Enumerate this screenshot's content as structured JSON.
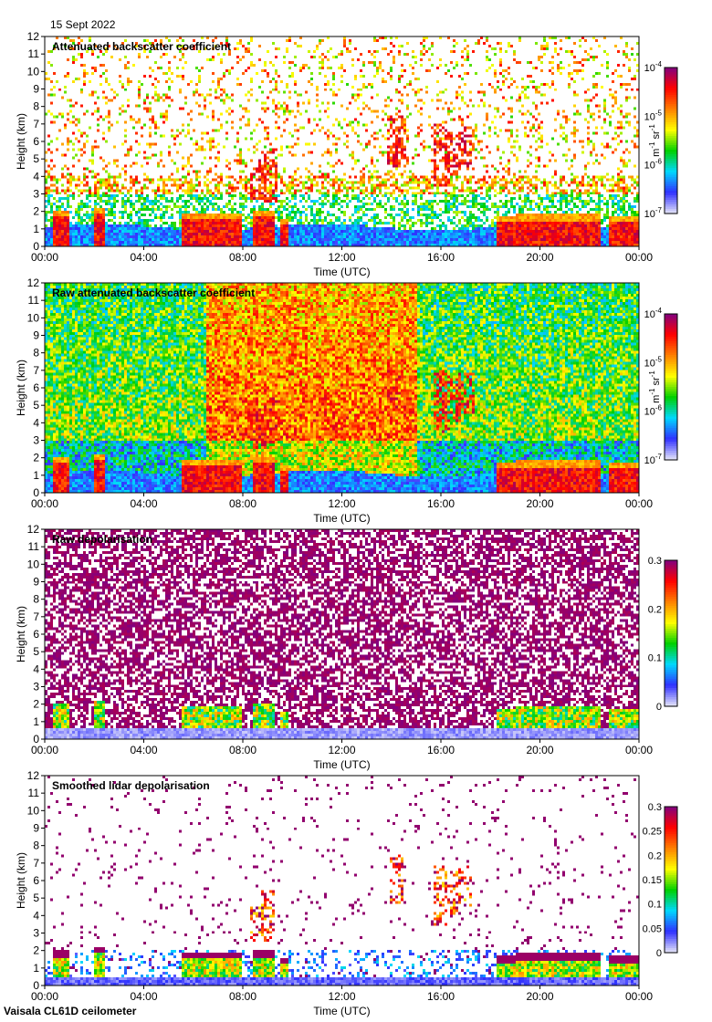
{
  "date": "15 Sept 2022",
  "footer": "Vaisala CL61D ceilometer",
  "colors": {
    "colormap": [
      "#e6e6f8",
      "#3030ff",
      "#00d8ff",
      "#00d000",
      "#ffff00",
      "#ff8000",
      "#ff0000",
      "#800080"
    ]
  },
  "chart_data": [
    {
      "type": "heatmap",
      "title": "Attenuated backscatter coefficient",
      "xlabel": "Time (UTC)",
      "ylabel": "Height (km)",
      "xticks": [
        "00:00",
        "04:00",
        "08:00",
        "12:00",
        "16:00",
        "20:00",
        "00:00"
      ],
      "yticks": [
        "0",
        "1",
        "2",
        "3",
        "4",
        "5",
        "6",
        "7",
        "8",
        "9",
        "10",
        "11",
        "12"
      ],
      "xlim": [
        0,
        24
      ],
      "ylim": [
        0,
        12
      ],
      "colorbar": {
        "scale": "log",
        "range": [
          1e-07,
          0.0001
        ],
        "ticks": [
          {
            "base": "10",
            "exp": "-4"
          },
          {
            "base": "10",
            "exp": "-5"
          },
          {
            "base": "10",
            "exp": "-6"
          },
          {
            "base": "10",
            "exp": "-7"
          }
        ],
        "label": {
          "m": "m",
          "m_exp": "-1",
          "sr": " sr",
          "sr_exp": "-1"
        }
      }
    },
    {
      "type": "heatmap",
      "title": "Raw attenuated backscatter coefficient",
      "xlabel": "Time (UTC)",
      "ylabel": "Height (km)",
      "xticks": [
        "00:00",
        "04:00",
        "08:00",
        "12:00",
        "16:00",
        "20:00",
        "00:00"
      ],
      "yticks": [
        "0",
        "1",
        "2",
        "3",
        "4",
        "5",
        "6",
        "7",
        "8",
        "9",
        "10",
        "11",
        "12"
      ],
      "xlim": [
        0,
        24
      ],
      "ylim": [
        0,
        12
      ],
      "colorbar": {
        "scale": "log",
        "range": [
          1e-07,
          0.0001
        ],
        "ticks": [
          {
            "base": "10",
            "exp": "-4"
          },
          {
            "base": "10",
            "exp": "-5"
          },
          {
            "base": "10",
            "exp": "-6"
          },
          {
            "base": "10",
            "exp": "-7"
          }
        ],
        "label": {
          "m": "m",
          "m_exp": "-1",
          "sr": " sr",
          "sr_exp": "-1"
        }
      }
    },
    {
      "type": "heatmap",
      "title": "Raw depolarisation",
      "xlabel": "Time (UTC)",
      "ylabel": "Height (km)",
      "xticks": [
        "00:00",
        "04:00",
        "08:00",
        "12:00",
        "16:00",
        "20:00",
        "00:00"
      ],
      "yticks": [
        "0",
        "1",
        "2",
        "3",
        "4",
        "5",
        "6",
        "7",
        "8",
        "9",
        "10",
        "11",
        "12"
      ],
      "xlim": [
        0,
        24
      ],
      "ylim": [
        0,
        12
      ],
      "colorbar": {
        "scale": "linear",
        "range": [
          0,
          0.3
        ],
        "ticks": [
          "0.3",
          "0.2",
          "0.1",
          "0"
        ]
      }
    },
    {
      "type": "heatmap",
      "title": "Smoothed lidar depolarisation",
      "xlabel": "Time (UTC)",
      "ylabel": "Height (km)",
      "xticks": [
        "00:00",
        "04:00",
        "08:00",
        "12:00",
        "16:00",
        "20:00",
        "00:00"
      ],
      "yticks": [
        "0",
        "1",
        "2",
        "3",
        "4",
        "5",
        "6",
        "7",
        "8",
        "9",
        "10",
        "11",
        "12"
      ],
      "xlim": [
        0,
        24
      ],
      "ylim": [
        0,
        12
      ],
      "colorbar": {
        "scale": "linear",
        "range": [
          0,
          0.3
        ],
        "ticks": [
          "0.3",
          "0.25",
          "0.2",
          "0.15",
          "0.1",
          "0.05",
          "0"
        ]
      }
    }
  ]
}
